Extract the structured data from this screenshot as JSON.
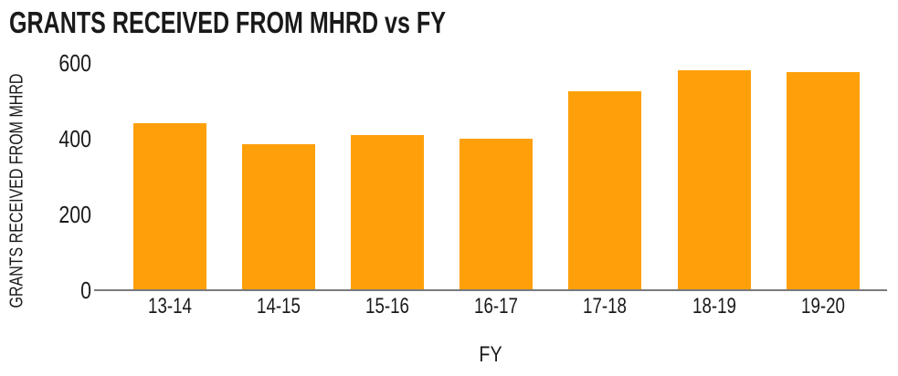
{
  "chart_data": {
    "type": "bar",
    "title": "GRANTS RECEIVED FROM MHRD vs FY",
    "xlabel": "FY",
    "ylabel": "GRANTS RECEIVED FROM MHRD",
    "categories": [
      "13-14",
      "14-15",
      "15-16",
      "16-17",
      "17-18",
      "18-19",
      "19-20"
    ],
    "values": [
      440,
      385,
      410,
      400,
      525,
      580,
      575
    ],
    "yticks": [
      0,
      200,
      400,
      600
    ],
    "ylim": [
      0,
      600
    ],
    "grid": false,
    "legend": "none",
    "colors": {
      "bar": "#FFA00A",
      "axis_line": "#7A7A7A",
      "text": "#1A1A1A",
      "background": "#FFFFFF"
    }
  }
}
